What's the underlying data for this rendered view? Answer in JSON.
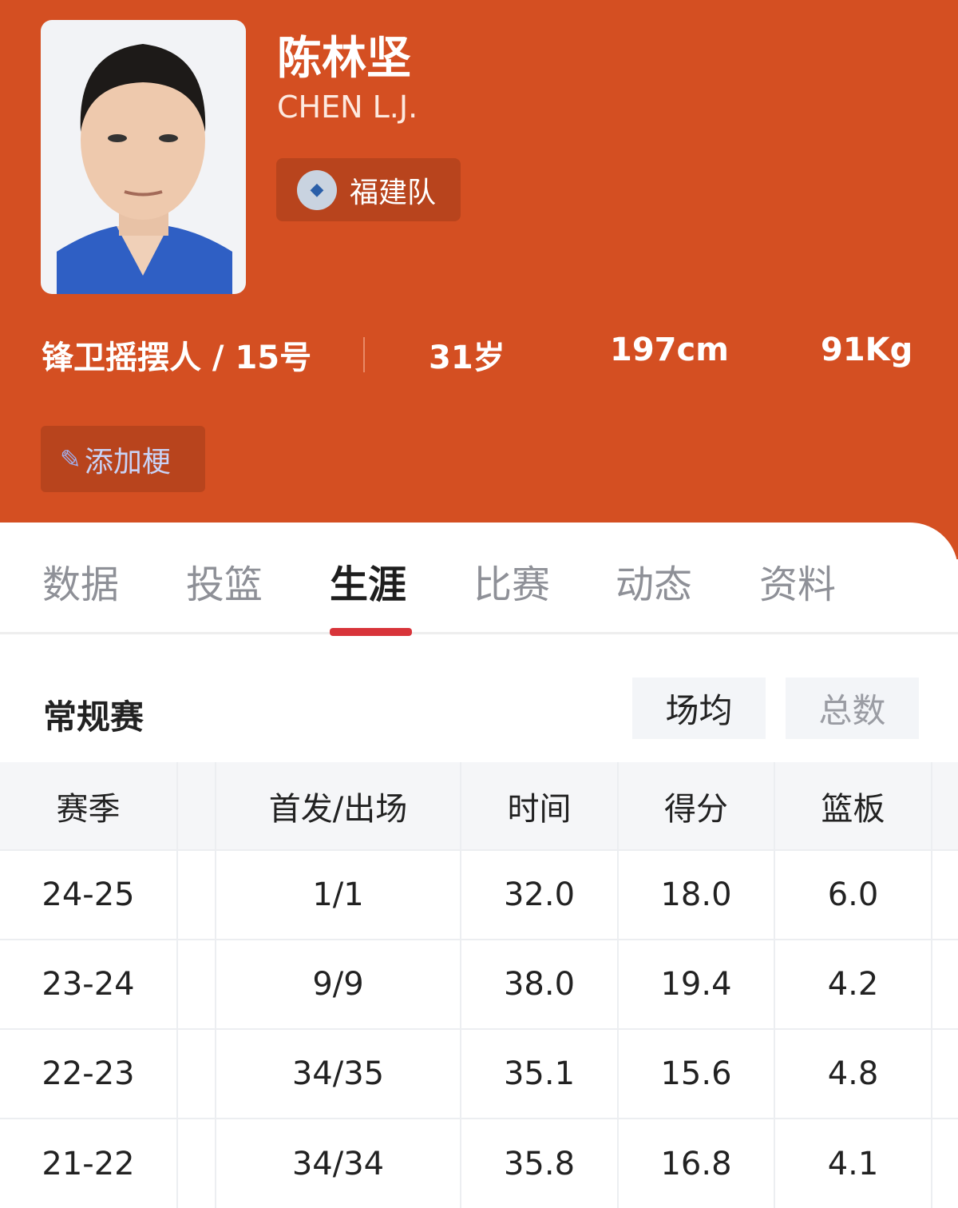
{
  "player": {
    "name": "陈林坚",
    "english_name": "CHEN L.J.",
    "team": "福建队",
    "position_number": "锋卫摇摆人 / 15号",
    "age": "31岁",
    "height": "197cm",
    "weight": "91Kg",
    "add_button": "添加梗"
  },
  "colors": {
    "brand": "#d44f22",
    "tab_indicator": "#d8343a"
  },
  "tabs": [
    {
      "label": "数据"
    },
    {
      "label": "投篮"
    },
    {
      "label": "生涯",
      "active": true
    },
    {
      "label": "比赛"
    },
    {
      "label": "动态"
    },
    {
      "label": "资料"
    }
  ],
  "section": {
    "title": "常规赛",
    "toggle": [
      {
        "label": "场均",
        "selected": true
      },
      {
        "label": "总数"
      }
    ]
  },
  "table": {
    "headers": [
      "赛季",
      "首发/出场",
      "时间",
      "得分",
      "篮板"
    ],
    "rows": [
      [
        "24-25",
        "1/1",
        "32.0",
        "18.0",
        "6.0"
      ],
      [
        "23-24",
        "9/9",
        "38.0",
        "19.4",
        "4.2"
      ],
      [
        "22-23",
        "34/35",
        "35.1",
        "15.6",
        "4.8"
      ],
      [
        "21-22",
        "34/34",
        "35.8",
        "16.8",
        "4.1"
      ]
    ]
  }
}
